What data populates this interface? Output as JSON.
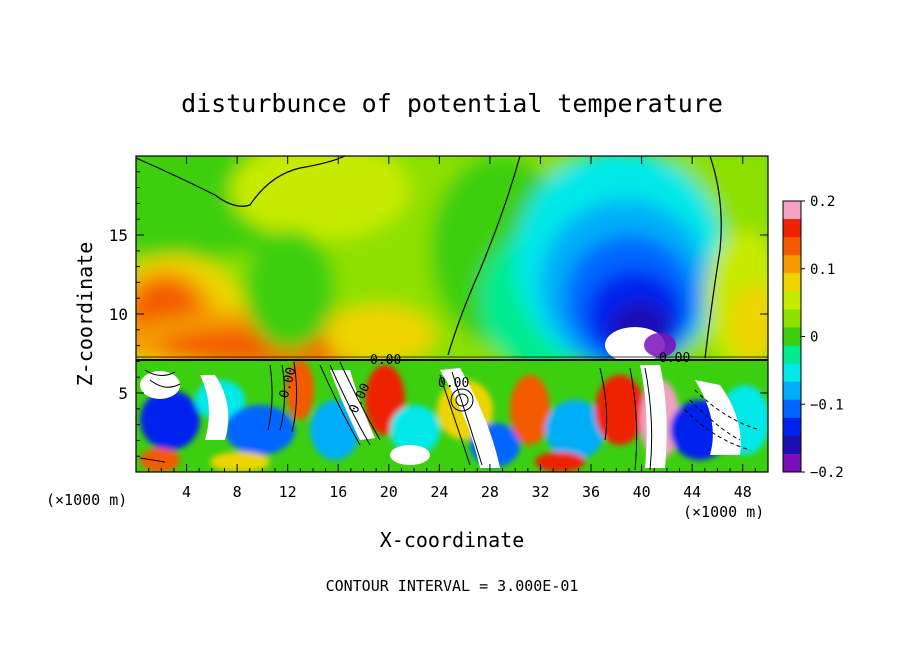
{
  "chart_data": {
    "type": "heatmap",
    "title": "disturbunce of potential temperature",
    "xlabel": "X-coordinate",
    "ylabel": "Z-coordinate",
    "x_unit_left": "(×1000 m)",
    "x_unit_right": "(×1000 m)",
    "xlim": [
      0,
      50
    ],
    "ylim": [
      0,
      20
    ],
    "x_ticks": [
      4,
      8,
      12,
      16,
      20,
      24,
      28,
      32,
      36,
      40,
      44,
      48
    ],
    "y_ticks": [
      5,
      10,
      15
    ],
    "x_tick_labels": [
      "4",
      "8",
      "12",
      "16",
      "20",
      "24",
      "28",
      "32",
      "36",
      "40",
      "44",
      "48"
    ],
    "y_tick_labels": [
      "5",
      "10",
      "15"
    ],
    "colorbar": {
      "range": [
        -0.2,
        0.2
      ],
      "tick_values": [
        0.2,
        0.1,
        0,
        -0.1,
        -0.2
      ],
      "tick_labels": [
        "0.2",
        "0.1",
        "0",
        "−0.1",
        "−0.2"
      ],
      "colors": [
        "#f2a3c3",
        "#ee2200",
        "#f45a00",
        "#f49a00",
        "#eed400",
        "#c6ea00",
        "#8ee000",
        "#3ccf10",
        "#00ea90",
        "#00e8e8",
        "#00aef8",
        "#0066ff",
        "#0022ee",
        "#1a0fb0",
        "#7a0fb8"
      ]
    },
    "contour_labels": [
      "0.00",
      "0.00",
      "0.00",
      "0.00",
      "0.00"
    ],
    "footer": "CONTOUR INTERVAL = 3.000E-01"
  }
}
